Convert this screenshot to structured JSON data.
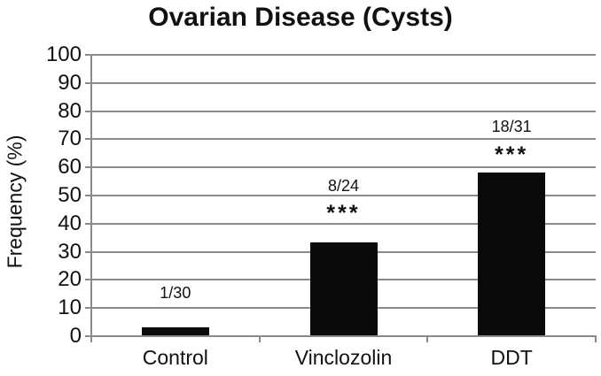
{
  "chart_data": {
    "type": "bar",
    "title": "Ovarian Disease (Cysts)",
    "ylabel": "Frequency (%)",
    "xlabel": "",
    "ylim": [
      0,
      100
    ],
    "ytick_step": 10,
    "grid": true,
    "legend": "none",
    "categories": [
      "Control",
      "Vinclozolin",
      "DDT"
    ],
    "values": [
      3.3,
      33.3,
      58.1
    ],
    "annotations": [
      {
        "fraction": "1/30",
        "stars": "",
        "fraction_y_pct": 15.5,
        "stars_y_pct": null
      },
      {
        "fraction": "8/24",
        "stars": "***",
        "fraction_y_pct": 53.5,
        "stars_y_pct": 44.5
      },
      {
        "fraction": "18/31",
        "stars": "***",
        "fraction_y_pct": 74.5,
        "stars_y_pct": 65.5
      }
    ],
    "colors": {
      "bar": "#0a0a0a",
      "grid": "#8a8a8a",
      "axis": "#8a8a8a",
      "text": "#111111",
      "background": "#ffffff"
    }
  }
}
